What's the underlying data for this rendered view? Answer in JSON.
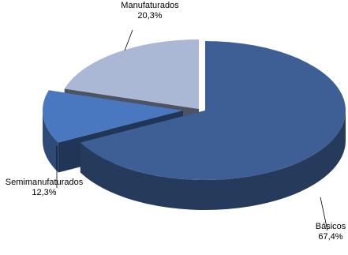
{
  "chart_data": {
    "type": "pie",
    "title": "",
    "slices": [
      {
        "name": "Básicos",
        "value": 67.4,
        "value_label": "67,4%",
        "color": "#3d5f95",
        "exploded": false
      },
      {
        "name": "Semimanufaturados",
        "value": 12.3,
        "value_label": "12,3%",
        "color": "#4a78c0",
        "exploded": true
      },
      {
        "name": "Manufaturados",
        "value": 20.3,
        "value_label": "20,3%",
        "color": "#aab8d6",
        "exploded": true
      }
    ],
    "style": "3d-exploded",
    "legend": "none"
  }
}
